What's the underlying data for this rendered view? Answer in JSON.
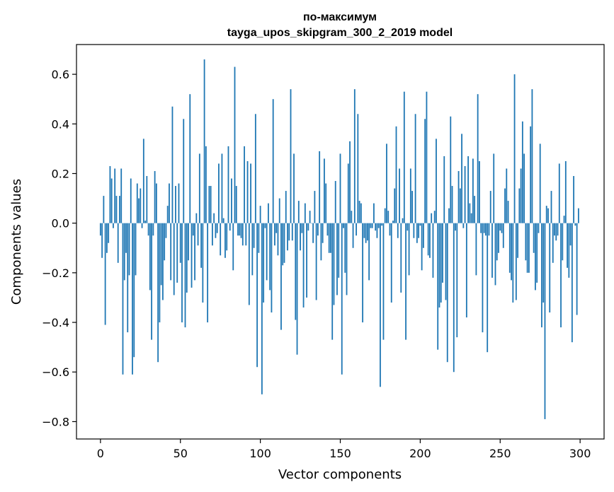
{
  "chart_data": {
    "type": "bar",
    "title_line1": "по-максимум",
    "title_line2": "tayga_upos_skipgram_300_2_2019 model",
    "xlabel": "Vector components",
    "ylabel": "Components values",
    "xlim": [
      -15,
      315
    ],
    "ylim": [
      -0.87,
      0.72
    ],
    "xticks": [
      0,
      50,
      100,
      150,
      200,
      250,
      300
    ],
    "xtick_labels": [
      "0",
      "50",
      "100",
      "150",
      "200",
      "250",
      "300"
    ],
    "yticks": [
      -0.8,
      -0.6,
      -0.4,
      -0.2,
      0.0,
      0.2,
      0.4,
      0.6
    ],
    "ytick_labels": [
      "−0.8",
      "−0.6",
      "−0.4",
      "−0.2",
      "0.0",
      "0.2",
      "0.4",
      "0.6"
    ],
    "grid": false,
    "bar_color": "#1f77b4",
    "values": [
      -0.05,
      -0.14,
      0.11,
      -0.41,
      -0.12,
      -0.08,
      0.23,
      0.18,
      -0.02,
      0.22,
      0.11,
      -0.16,
      0.11,
      0.22,
      -0.61,
      -0.23,
      -0.12,
      -0.44,
      -0.21,
      0.18,
      -0.61,
      -0.54,
      -0.21,
      0.16,
      0.1,
      0.14,
      -0.02,
      0.34,
      0.01,
      0.19,
      -0.05,
      -0.27,
      -0.47,
      -0.05,
      0.21,
      0.16,
      -0.56,
      -0.4,
      -0.25,
      -0.31,
      -0.15,
      -0.06,
      0.07,
      0.16,
      -0.23,
      0.47,
      -0.29,
      0.15,
      -0.24,
      0.16,
      -0.16,
      -0.4,
      0.42,
      -0.42,
      -0.28,
      -0.15,
      0.52,
      -0.26,
      -0.05,
      -0.23,
      0.04,
      -0.09,
      0.28,
      -0.18,
      -0.32,
      0.66,
      0.31,
      -0.4,
      0.15,
      0.15,
      -0.09,
      0.04,
      -0.06,
      -0.04,
      0.24,
      -0.13,
      0.28,
      0.02,
      -0.14,
      -0.11,
      0.31,
      -0.03,
      0.18,
      -0.19,
      0.63,
      0.15,
      -0.05,
      -0.05,
      -0.06,
      -0.09,
      0.31,
      -0.09,
      0.25,
      -0.33,
      0.24,
      -0.21,
      -0.1,
      0.44,
      -0.58,
      -0.12,
      0.07,
      -0.69,
      -0.32,
      -0.02,
      -0.23,
      0.08,
      -0.27,
      -0.36,
      0.5,
      -0.09,
      -0.04,
      -0.13,
      0.1,
      -0.43,
      -0.17,
      -0.16,
      0.13,
      -0.11,
      -0.07,
      0.54,
      -0.07,
      0.28,
      -0.39,
      -0.53,
      0.09,
      -0.11,
      -0.04,
      -0.34,
      0.08,
      -0.3,
      -0.03,
      0.05,
      0.0,
      -0.08,
      0.13,
      -0.31,
      -0.05,
      0.29,
      -0.15,
      -0.08,
      0.26,
      0.16,
      -0.05,
      -0.12,
      -0.12,
      -0.47,
      -0.33,
      0.17,
      -0.29,
      -0.22,
      0.28,
      -0.61,
      -0.02,
      -0.2,
      -0.29,
      0.24,
      0.33,
      0.05,
      -0.1,
      0.54,
      -0.05,
      0.44,
      0.09,
      0.08,
      -0.4,
      -0.06,
      -0.08,
      -0.07,
      -0.23,
      -0.02,
      -0.02,
      0.08,
      -0.03,
      -0.06,
      -0.02,
      -0.66,
      -0.01,
      -0.47,
      0.06,
      0.32,
      0.05,
      -0.05,
      -0.32,
      0.01,
      0.14,
      0.39,
      -0.06,
      0.22,
      -0.28,
      0.02,
      0.53,
      -0.47,
      -0.03,
      -0.21,
      0.22,
      0.13,
      -0.06,
      0.44,
      -0.08,
      -0.06,
      -0.01,
      -0.19,
      -0.1,
      0.42,
      0.53,
      -0.13,
      -0.14,
      0.04,
      -0.22,
      0.05,
      0.34,
      -0.51,
      -0.34,
      -0.32,
      -0.24,
      0.27,
      -0.31,
      -0.56,
      0.06,
      0.43,
      0.15,
      -0.6,
      -0.03,
      -0.46,
      0.21,
      0.14,
      0.36,
      -0.02,
      0.23,
      -0.38,
      0.27,
      0.08,
      0.04,
      0.26,
      0.11,
      -0.21,
      0.52,
      0.25,
      -0.04,
      -0.44,
      -0.04,
      -0.05,
      -0.52,
      -0.05,
      0.13,
      -0.22,
      0.28,
      -0.25,
      -0.15,
      -0.12,
      -0.03,
      -0.04,
      -0.1,
      0.14,
      0.22,
      0.09,
      -0.2,
      -0.23,
      -0.32,
      0.6,
      -0.31,
      -0.14,
      0.14,
      0.22,
      0.41,
      0.28,
      -0.15,
      -0.2,
      -0.2,
      0.39,
      0.54,
      -0.12,
      -0.27,
      -0.24,
      -0.04,
      0.32,
      -0.42,
      -0.32,
      -0.79,
      0.07,
      0.06,
      -0.36,
      0.13,
      -0.16,
      -0.05,
      -0.07,
      -0.05,
      0.24,
      -0.42,
      -0.15,
      0.03,
      0.25,
      -0.18,
      -0.22,
      -0.09,
      -0.48,
      0.19,
      -0.01,
      -0.37,
      0.06
    ]
  }
}
